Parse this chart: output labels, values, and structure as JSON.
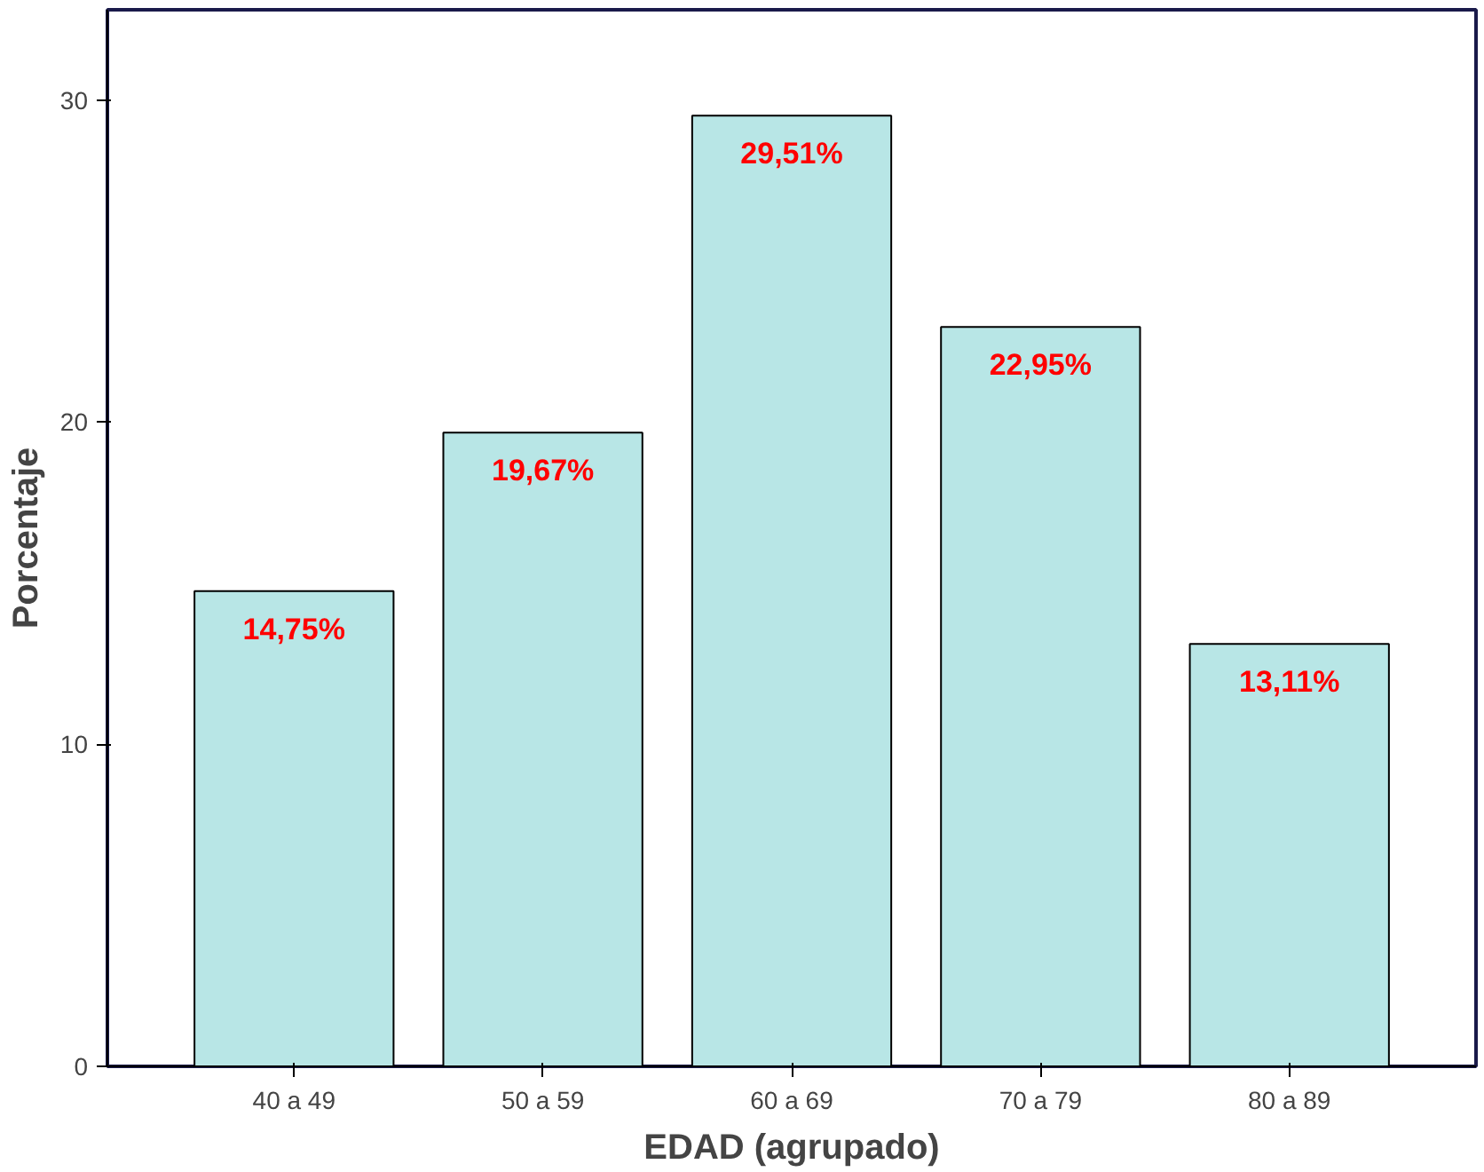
{
  "chart_data": {
    "type": "bar",
    "xlabel": "EDAD (agrupado)",
    "ylabel": "Porcentaje",
    "categories": [
      "40 a 49",
      "50 a 59",
      "60 a 69",
      "70 a 79",
      "80 a 89"
    ],
    "values": [
      14.75,
      19.67,
      29.51,
      22.95,
      13.11
    ],
    "value_labels": [
      "14,75%",
      "19,67%",
      "29,51%",
      "22,95%",
      "13,11%"
    ],
    "color": "#b8e6e6",
    "ylim": [
      0,
      32.8
    ],
    "yticks": [
      0,
      10,
      20,
      30
    ],
    "grid": false
  }
}
